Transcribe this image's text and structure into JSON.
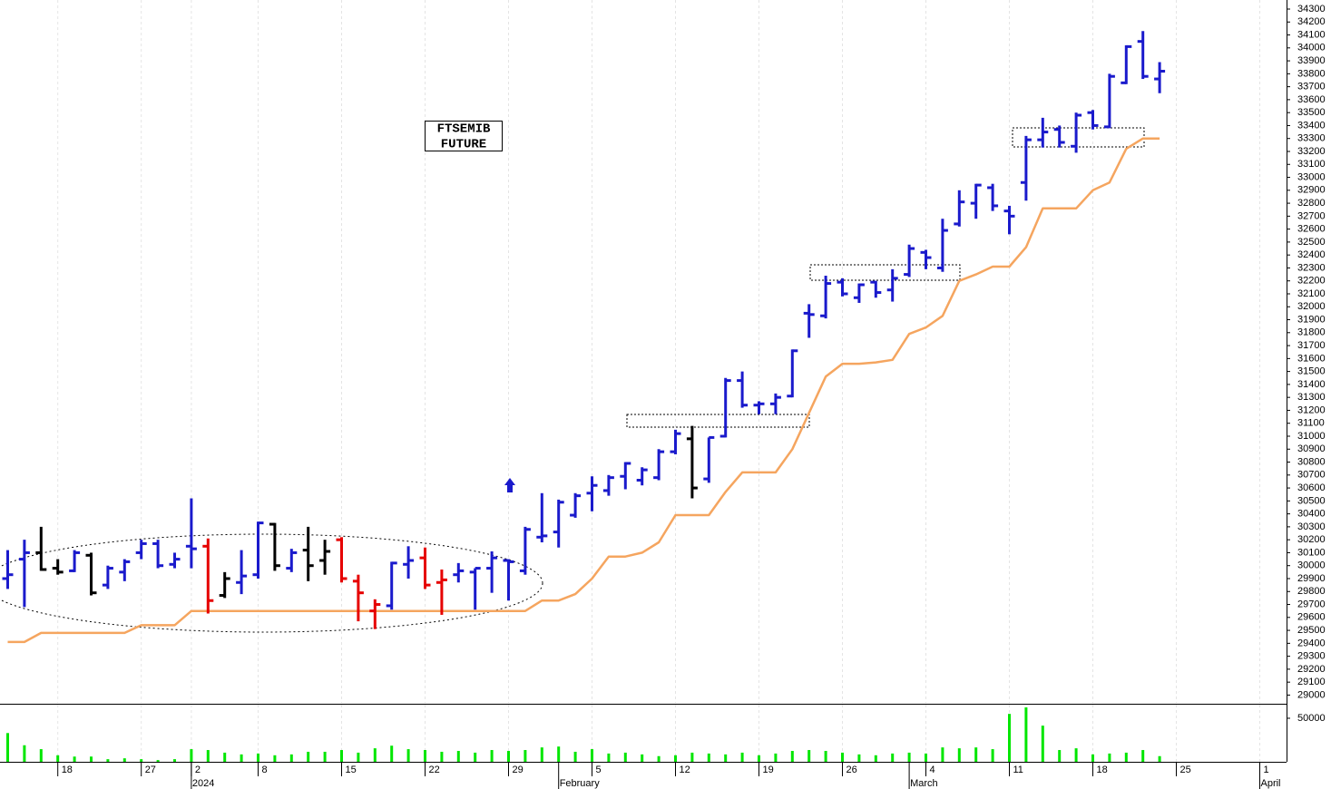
{
  "chart_data": {
    "type": "ohlc",
    "title": [
      "FTSEMIB",
      "FUTURE"
    ],
    "categories": [
      null,
      null,
      null,
      "18",
      null,
      null,
      null,
      null,
      "27",
      null,
      null,
      "2",
      null,
      null,
      null,
      "8",
      null,
      null,
      null,
      null,
      "15",
      null,
      null,
      null,
      null,
      "22",
      null,
      null,
      null,
      null,
      "29",
      null,
      null,
      null,
      null,
      "5",
      null,
      null,
      null,
      null,
      "12",
      null,
      null,
      null,
      null,
      "19",
      null,
      null,
      null,
      null,
      "26",
      null,
      null,
      null,
      null,
      "4",
      null,
      null,
      null,
      null,
      "11",
      null,
      null,
      null,
      null,
      "18",
      null,
      null,
      null,
      null,
      "25",
      null,
      null,
      null,
      null,
      "1",
      null
    ],
    "months": [
      null,
      null,
      null,
      null,
      null,
      null,
      null,
      null,
      null,
      null,
      null,
      "2024",
      null,
      null,
      null,
      null,
      null,
      null,
      null,
      null,
      null,
      null,
      null,
      null,
      null,
      null,
      null,
      null,
      null,
      null,
      null,
      null,
      null,
      "February",
      null,
      null,
      null,
      null,
      null,
      null,
      null,
      null,
      null,
      null,
      null,
      null,
      null,
      null,
      null,
      null,
      null,
      null,
      null,
      null,
      "March",
      null,
      null,
      null,
      null,
      null,
      null,
      null,
      null,
      null,
      null,
      null,
      null,
      null,
      null,
      null,
      null,
      null,
      null,
      null,
      null,
      "April",
      null
    ],
    "open": [
      29900,
      30050,
      30100,
      29980,
      29960,
      30080,
      29850,
      29950,
      30100,
      30170,
      30010,
      30150,
      30150,
      29770,
      29870,
      29930,
      30320,
      29980,
      30120,
      30040,
      30200,
      29880,
      29650,
      29690,
      30010,
      30060,
      29870,
      29930,
      29950,
      29980,
      30040,
      29960,
      30220,
      30260,
      30390,
      30560,
      30580,
      30690,
      30660,
      30680,
      30880,
      30980,
      30670,
      31000,
      31430,
      31240,
      31250,
      31310,
      31950,
      31930,
      32190,
      32070,
      32190,
      32130,
      32250,
      32420,
      32300,
      32640,
      32800,
      32920,
      32740,
      32960,
      33290,
      33370,
      33240,
      33500,
      33390,
      33730,
      34050,
      33760,
      null,
      null,
      null,
      null,
      null,
      null,
      null
    ],
    "high": [
      30120,
      30200,
      30300,
      30050,
      30120,
      30100,
      30000,
      30050,
      30200,
      30200,
      30100,
      30520,
      30210,
      29950,
      30120,
      30340,
      30330,
      30130,
      30300,
      30200,
      30220,
      29930,
      29740,
      30030,
      30150,
      30140,
      29970,
      30020,
      29980,
      30110,
      30050,
      30300,
      30560,
      30510,
      30560,
      30690,
      30700,
      30800,
      30760,
      30900,
      31050,
      31080,
      30990,
      31450,
      31500,
      31270,
      31330,
      31670,
      32020,
      32240,
      32220,
      32180,
      32200,
      32290,
      32480,
      32440,
      32680,
      32900,
      32950,
      32950,
      32780,
      33320,
      33460,
      33400,
      33500,
      33520,
      33800,
      34020,
      34130,
      33890,
      null,
      null,
      null,
      null,
      null,
      null,
      null
    ],
    "low": [
      29820,
      29680,
      29960,
      29930,
      29950,
      29770,
      29820,
      29880,
      30050,
      29980,
      29980,
      29980,
      29630,
      29750,
      29780,
      29900,
      29960,
      29950,
      29880,
      29930,
      29870,
      29570,
      29510,
      29660,
      29900,
      29820,
      29620,
      29870,
      29660,
      29790,
      29730,
      29930,
      30180,
      30140,
      30370,
      30420,
      30540,
      30590,
      30620,
      30660,
      30860,
      30520,
      30640,
      30990,
      31220,
      31170,
      31170,
      31300,
      31760,
      31910,
      32080,
      32030,
      32070,
      32040,
      32230,
      32290,
      32270,
      32620,
      32680,
      32740,
      32560,
      32820,
      33230,
      33230,
      33190,
      33370,
      33380,
      33720,
      33760,
      33650,
      null,
      null,
      null,
      null,
      null,
      null,
      null
    ],
    "close": [
      29930,
      30100,
      29970,
      29950,
      30100,
      29790,
      29980,
      30030,
      30170,
      30000,
      30050,
      30130,
      29730,
      29900,
      29920,
      30330,
      30000,
      30100,
      30000,
      30110,
      29900,
      29790,
      29700,
      30020,
      30040,
      29850,
      29890,
      29960,
      29980,
      30060,
      30030,
      30280,
      30230,
      30490,
      30540,
      30620,
      30680,
      30790,
      30740,
      30880,
      31020,
      30600,
      30990,
      31430,
      31240,
      31250,
      31300,
      31660,
      31940,
      32180,
      32100,
      32170,
      32110,
      32220,
      32450,
      32380,
      32590,
      32810,
      32940,
      32780,
      32700,
      33290,
      33350,
      33270,
      33480,
      33400,
      33780,
      34010,
      33780,
      33820,
      null,
      null,
      null,
      null,
      null,
      null,
      null
    ],
    "bar_colors": [
      "#1a1acc",
      "#1a1acc",
      "#000000",
      "#000000",
      "#1a1acc",
      "#000000",
      "#1a1acc",
      "#1a1acc",
      "#1a1acc",
      "#1a1acc",
      "#1a1acc",
      "#1a1acc",
      "#e60000",
      "#000000",
      "#1a1acc",
      "#1a1acc",
      "#000000",
      "#1a1acc",
      "#000000",
      "#000000",
      "#e60000",
      "#e60000",
      "#e60000",
      "#1a1acc",
      "#1a1acc",
      "#e60000",
      "#e60000",
      "#1a1acc",
      "#1a1acc",
      "#1a1acc",
      "#1a1acc",
      "#1a1acc",
      "#1a1acc",
      "#1a1acc",
      "#1a1acc",
      "#1a1acc",
      "#1a1acc",
      "#1a1acc",
      "#1a1acc",
      "#1a1acc",
      "#1a1acc",
      "#000000",
      "#1a1acc",
      "#1a1acc",
      "#1a1acc",
      "#1a1acc",
      "#1a1acc",
      "#1a1acc",
      "#1a1acc",
      "#1a1acc",
      "#1a1acc",
      "#1a1acc",
      "#1a1acc",
      "#1a1acc",
      "#1a1acc",
      "#1a1acc",
      "#1a1acc",
      "#1a1acc",
      "#1a1acc",
      "#1a1acc",
      "#1a1acc",
      "#1a1acc",
      "#1a1acc",
      "#1a1acc",
      "#1a1acc",
      "#1a1acc",
      "#1a1acc",
      "#1a1acc",
      "#1a1acc",
      "#1a1acc",
      null,
      null,
      null,
      null,
      null,
      null,
      null
    ],
    "stop_line": {
      "color": "#f5a55f",
      "values": [
        29410,
        29410,
        29480,
        29480,
        29480,
        29480,
        29480,
        29480,
        29540,
        29540,
        29540,
        29650,
        29650,
        29650,
        29650,
        29650,
        29650,
        29650,
        29650,
        29650,
        29650,
        29650,
        29650,
        29650,
        29650,
        29650,
        29650,
        29650,
        29650,
        29650,
        29650,
        29650,
        29730,
        29730,
        29780,
        29900,
        30070,
        30070,
        30100,
        30180,
        30390,
        30390,
        30390,
        30570,
        30720,
        30720,
        30720,
        30900,
        31180,
        31460,
        31560,
        31560,
        31570,
        31590,
        31790,
        31840,
        31930,
        32200,
        32250,
        32310,
        32310,
        32460,
        32760,
        32760,
        32760,
        32900,
        32960,
        33220,
        33300,
        33300,
        null,
        null,
        null,
        null,
        null,
        null,
        null
      ]
    },
    "ylim": [
      28940,
      34370
    ],
    "yticks": [
      29000,
      29100,
      29200,
      29300,
      29400,
      29500,
      29600,
      29700,
      29800,
      29900,
      30000,
      30100,
      30200,
      30300,
      30400,
      30500,
      30600,
      30700,
      30800,
      30900,
      31000,
      31100,
      31200,
      31300,
      31400,
      31500,
      31600,
      31700,
      31800,
      31900,
      32000,
      32100,
      32200,
      32300,
      32400,
      32500,
      32600,
      32700,
      32800,
      32900,
      33000,
      33100,
      33200,
      33300,
      33400,
      33500,
      33600,
      33700,
      33800,
      33900,
      34000,
      34100,
      34200,
      34300
    ],
    "xgrid": true,
    "volume": {
      "color": "#00e600",
      "ylim": [
        0,
        65600
      ],
      "yticks": [
        50000
      ],
      "values": [
        33000,
        19000,
        14500,
        7500,
        6000,
        6000,
        3000,
        4000,
        3000,
        2000,
        3000,
        14500,
        13500,
        10500,
        8500,
        9500,
        7500,
        8500,
        11500,
        11500,
        13500,
        10500,
        15500,
        18500,
        14500,
        13500,
        11500,
        12500,
        10500,
        13500,
        12500,
        13500,
        16500,
        17500,
        11500,
        14500,
        9500,
        10500,
        8500,
        6500,
        7500,
        10500,
        9500,
        8500,
        10500,
        7500,
        9500,
        12500,
        13500,
        12500,
        10500,
        8500,
        7500,
        9500,
        10500,
        9500,
        16500,
        15500,
        16500,
        14500,
        55000,
        62500,
        41500,
        13500,
        15500,
        8500,
        9500,
        10500,
        13500,
        6500,
        null,
        null,
        null,
        null,
        null,
        null,
        null
      ]
    }
  }
}
